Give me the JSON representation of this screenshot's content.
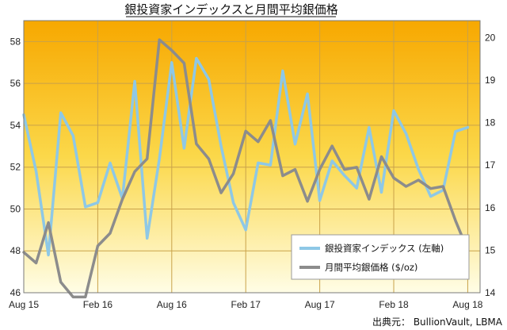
{
  "chart_data": {
    "type": "line",
    "title": "銀投資家インデックスと月間平均銀価格",
    "source": "出典元： BullionVault, LBMA",
    "x_tick_labels": [
      "Aug 15",
      "Feb 16",
      "Aug 16",
      "Feb 17",
      "Aug 17",
      "Feb 18",
      "Aug 18"
    ],
    "x_tick_months": [
      0,
      6,
      12,
      18,
      24,
      30,
      36
    ],
    "x_range": [
      0,
      37
    ],
    "y_left": {
      "ylim": [
        46,
        59
      ],
      "ticks": [
        46,
        48,
        50,
        52,
        54,
        56,
        58
      ]
    },
    "y_right": {
      "ylim": [
        14,
        20.4
      ],
      "ticks": [
        14,
        15,
        16,
        17,
        18,
        19,
        20
      ]
    },
    "grid": true,
    "legend_position": "bottom-right",
    "series": [
      {
        "name": "銀投資家インデックス (左軸)",
        "axis": "left",
        "color": "#8ec8e6",
        "x": [
          0,
          1,
          2,
          3,
          4,
          5,
          6,
          7,
          8,
          9,
          10,
          11,
          12,
          13,
          14,
          15,
          16,
          17,
          18,
          19,
          20,
          21,
          22,
          23,
          24,
          25,
          26,
          27,
          28,
          29,
          30,
          31,
          32,
          33,
          34,
          35,
          36,
          37
        ],
        "values": [
          54.5,
          51.8,
          47.8,
          54.6,
          53.5,
          50.1,
          50.3,
          52.2,
          50.5,
          56.1,
          48.6,
          52.4,
          57.0,
          52.9,
          57.2,
          56.2,
          53.0,
          50.3,
          49.0,
          52.2,
          52.1,
          56.6,
          53.1,
          55.5,
          50.4,
          52.3,
          51.6,
          51.0,
          53.9,
          50.8,
          54.7,
          53.6,
          51.9,
          50.6,
          50.9,
          53.7,
          53.9,
          null
        ]
      },
      {
        "name": "月間平均銀価格 ($/oz)",
        "axis": "right",
        "color": "#8c8c8c",
        "x": [
          0,
          1,
          2,
          3,
          4,
          5,
          6,
          7,
          8,
          9,
          10,
          11,
          12,
          13,
          14,
          15,
          16,
          17,
          18,
          19,
          20,
          21,
          22,
          23,
          24,
          25,
          26,
          27,
          28,
          29,
          30,
          31,
          32,
          33,
          34,
          35,
          36,
          37
        ],
        "values": [
          14.95,
          14.7,
          15.65,
          14.25,
          13.9,
          13.9,
          15.1,
          15.4,
          16.2,
          16.85,
          17.15,
          19.95,
          19.7,
          19.4,
          17.5,
          17.15,
          16.35,
          16.8,
          17.8,
          17.55,
          18.05,
          16.75,
          16.9,
          16.15,
          16.9,
          17.45,
          16.9,
          16.95,
          16.2,
          17.2,
          16.7,
          16.5,
          16.65,
          16.45,
          16.5,
          15.7,
          15.0,
          null
        ]
      }
    ]
  }
}
